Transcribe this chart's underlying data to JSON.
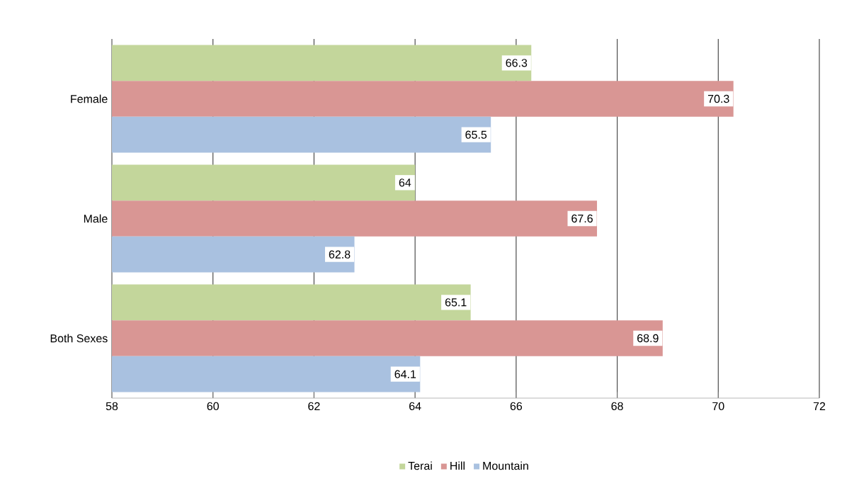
{
  "chart_data": {
    "type": "bar",
    "orientation": "horizontal",
    "categories": [
      "Female",
      "Male",
      "Both Sexes"
    ],
    "series": [
      {
        "name": "Terai",
        "color": "#c3d69b",
        "values": [
          66.3,
          64,
          65.1
        ]
      },
      {
        "name": "Hill",
        "color": "#d99694",
        "values": [
          70.3,
          67.6,
          68.9
        ]
      },
      {
        "name": "Mountain",
        "color": "#a9c1e0",
        "values": [
          65.5,
          62.8,
          64.1
        ]
      }
    ],
    "xlim": [
      58,
      72
    ],
    "xticks": [
      58,
      60,
      62,
      64,
      66,
      68,
      70,
      72
    ],
    "grid": "x",
    "legend": "bottom",
    "data_labels": true
  }
}
